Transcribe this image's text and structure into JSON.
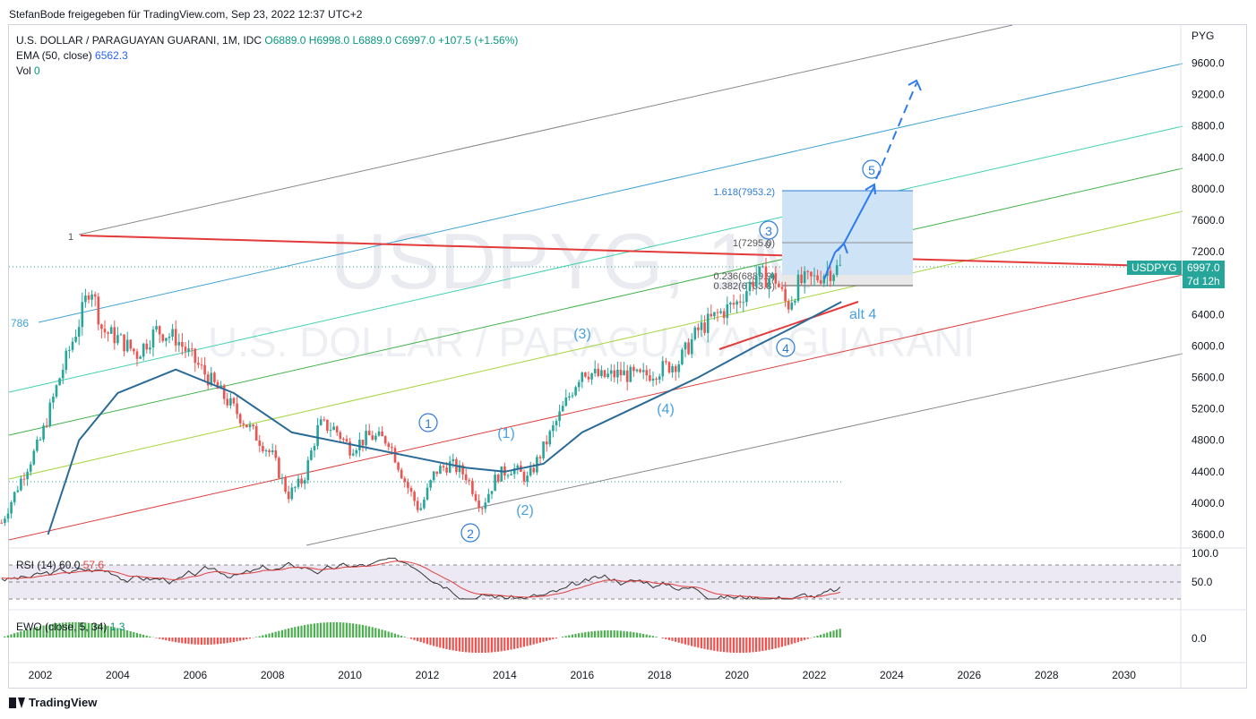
{
  "header": {
    "published": "StefanBode freigegeben für TradingView.com, Sep 23, 2022 12:37 UTC+2"
  },
  "legend": {
    "symbol": "U.S. DOLLAR / PARAGUAYAN GUARANI, 1M, IDC",
    "o": "O6889.0",
    "h": "H6998.0",
    "l": "L6889.0",
    "c": "C6997.0",
    "chg": "+107.5 (+1.56%)",
    "ema_label": "EMA (50, close)",
    "ema_val": "6562.3",
    "vol_label": "Vol",
    "vol_val": "0"
  },
  "watermark": {
    "ticker": "USDPYG, 1M",
    "name": "U.S. DOLLAR / PARAGUAYAN GUARANI"
  },
  "price_scale": {
    "currency": "PYG",
    "ticks": [
      "9600.0",
      "9200.0",
      "8800.0",
      "8400.0",
      "8000.0",
      "7600.0",
      "7200.0",
      "6400.0",
      "6000.0",
      "5600.0",
      "5200.0",
      "4800.0",
      "4400.0",
      "4000.0",
      "3600.0"
    ],
    "last_symbol": "USDPYG",
    "last_price": "6997.0",
    "countdown": "7d 12h",
    "left_label": "786"
  },
  "time_axis": {
    "ticks": [
      "2002",
      "2004",
      "2006",
      "2008",
      "2010",
      "2012",
      "2014",
      "2016",
      "2018",
      "2020",
      "2022",
      "2024",
      "2026",
      "2028",
      "2030"
    ]
  },
  "rsi": {
    "label": "RSI (14)",
    "v1": "60.0",
    "v2": "57.6",
    "ticks": [
      "100.0",
      "50.0"
    ]
  },
  "ewo": {
    "label": "EWO (close, 5, 34)",
    "val": "1.3",
    "tick": "0.0"
  },
  "annotations": {
    "fib_1618": "1.618(7953.2)",
    "fib_1": "1(7295.0)",
    "fib_0236": "0.236(6889.9)",
    "fib_0382": "0.382(6763.8)",
    "fib_0": "0",
    "wave_1": "1",
    "wave_alt4": "alt 4",
    "w1": "1",
    "w2": "2",
    "w3": "3",
    "w4": "4",
    "w5": "5",
    "p1": "(1)",
    "p2": "(2)",
    "p3": "(3)",
    "p4": "(4)"
  },
  "chart_data": {
    "type": "candlestick",
    "title": "U.S. DOLLAR / PARAGUAYAN GUARANI, 1M, IDC",
    "ylim": [
      3400,
      9900
    ],
    "xlim": [
      2001.0,
      2031.5
    ],
    "price_closes": [
      [
        2001.0,
        3750
      ],
      [
        2001.5,
        4300
      ],
      [
        2002.0,
        4800
      ],
      [
        2002.5,
        5600
      ],
      [
        2003.0,
        6300
      ],
      [
        2003.3,
        6800
      ],
      [
        2003.6,
        6200
      ],
      [
        2004.0,
        6100
      ],
      [
        2004.5,
        5900
      ],
      [
        2005.0,
        6200
      ],
      [
        2005.5,
        6100
      ],
      [
        2006.0,
        5800
      ],
      [
        2006.5,
        5500
      ],
      [
        2007.0,
        5200
      ],
      [
        2007.5,
        4900
      ],
      [
        2008.0,
        4600
      ],
      [
        2008.4,
        4100
      ],
      [
        2008.8,
        4300
      ],
      [
        2009.2,
        5000
      ],
      [
        2009.6,
        4950
      ],
      [
        2010.0,
        4700
      ],
      [
        2010.5,
        4850
      ],
      [
        2011.0,
        4800
      ],
      [
        2011.4,
        4300
      ],
      [
        2011.8,
        3900
      ],
      [
        2012.2,
        4400
      ],
      [
        2012.6,
        4500
      ],
      [
        2013.0,
        4350
      ],
      [
        2013.4,
        3950
      ],
      [
        2013.8,
        4350
      ],
      [
        2014.2,
        4450
      ],
      [
        2014.6,
        4300
      ],
      [
        2015.0,
        4700
      ],
      [
        2015.5,
        5200
      ],
      [
        2016.0,
        5700
      ],
      [
        2016.5,
        5600
      ],
      [
        2017.0,
        5650
      ],
      [
        2017.5,
        5600
      ],
      [
        2018.0,
        5700
      ],
      [
        2018.5,
        5800
      ],
      [
        2019.0,
        6200
      ],
      [
        2019.5,
        6400
      ],
      [
        2020.0,
        6550
      ],
      [
        2020.5,
        6900
      ],
      [
        2021.0,
        6850
      ],
      [
        2021.3,
        6500
      ],
      [
        2021.6,
        6800
      ],
      [
        2022.0,
        6850
      ],
      [
        2022.3,
        6950
      ],
      [
        2022.7,
        6997
      ]
    ],
    "ema50": [
      [
        2002.2,
        3600
      ],
      [
        2003.0,
        4800
      ],
      [
        2004.0,
        5400
      ],
      [
        2005.5,
        5700
      ],
      [
        2007.0,
        5400
      ],
      [
        2008.5,
        4900
      ],
      [
        2010.0,
        4750
      ],
      [
        2011.5,
        4600
      ],
      [
        2013.0,
        4450
      ],
      [
        2014.0,
        4400
      ],
      [
        2015.0,
        4500
      ],
      [
        2016.0,
        4900
      ],
      [
        2017.5,
        5250
      ],
      [
        2019.0,
        5600
      ],
      [
        2020.5,
        6000
      ],
      [
        2021.5,
        6250
      ],
      [
        2022.7,
        6562
      ]
    ],
    "fib_levels": {
      "1.618": 7953.2,
      "1": 7295.0,
      "0.382": 6763.8,
      "0.236": 6889.9
    },
    "rsi_range": [
      0,
      100
    ],
    "rsi_values": [
      60.0,
      57.6
    ]
  }
}
